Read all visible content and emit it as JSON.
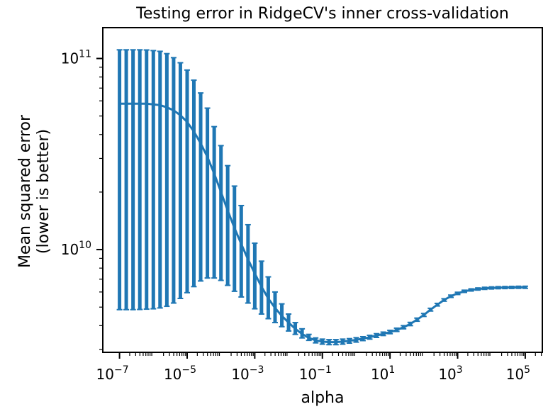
{
  "chart_data": {
    "type": "line",
    "title": "Testing error in RidgeCV's inner cross-validation",
    "xlabel": "alpha",
    "ylabel_lines": [
      "Mean squared error",
      "(lower is better)"
    ],
    "xscale": "log",
    "yscale": "log",
    "xlim": [
      3.2e-08,
      320000.0
    ],
    "ylim": [
      2900000000.0,
      145000000000.0
    ],
    "x_ticks": [
      {
        "value": 1e-07,
        "base": "10",
        "exp": "−7"
      },
      {
        "value": 1e-05,
        "base": "10",
        "exp": "−5"
      },
      {
        "value": 0.001,
        "base": "10",
        "exp": "−3"
      },
      {
        "value": 0.1,
        "base": "10",
        "exp": "−1"
      },
      {
        "value": 10.0,
        "base": "10",
        "exp": "1"
      },
      {
        "value": 1000.0,
        "base": "10",
        "exp": "3"
      },
      {
        "value": 100000.0,
        "base": "10",
        "exp": "5"
      }
    ],
    "y_ticks": [
      {
        "value": 10000000000.0,
        "base": "10",
        "exp": "10"
      },
      {
        "value": 100000000000.0,
        "base": "10",
        "exp": "11"
      }
    ],
    "grid": false,
    "legend": "none",
    "series": [
      {
        "style": "line with error bars",
        "color": "#1f77b4",
        "x": [
          1e-07,
          1.58e-07,
          2.51e-07,
          3.98e-07,
          6.31e-07,
          1e-06,
          1.58e-06,
          2.51e-06,
          3.98e-06,
          6.31e-06,
          1e-05,
          1.58e-05,
          2.51e-05,
          3.98e-05,
          6.31e-05,
          0.0001,
          0.000158,
          0.000251,
          0.000398,
          0.000631,
          0.001,
          0.00158,
          0.00251,
          0.00398,
          0.00631,
          0.01,
          0.0158,
          0.0251,
          0.0398,
          0.0631,
          0.1,
          0.158,
          0.251,
          0.398,
          0.631,
          1,
          1.58,
          2.51,
          3.98,
          6.31,
          10,
          15.8,
          25.1,
          39.8,
          63.1,
          100,
          158,
          251,
          398,
          631,
          1000,
          1580,
          2510,
          3980,
          6310,
          10000,
          15800,
          25100,
          39800,
          63100,
          100000
        ],
        "y": [
          58000000000.0,
          58000000000.0,
          58000000000.0,
          58000000000.0,
          58000000000.0,
          57500000000.0,
          57000000000.0,
          55500000000.0,
          53500000000.0,
          50500000000.0,
          46500000000.0,
          41500000000.0,
          36000000000.0,
          30500000000.0,
          25000000000.0,
          20000000000.0,
          16000000000.0,
          13000000000.0,
          10700000000.0,
          8900000000.0,
          7500000000.0,
          6400000000.0,
          5550000000.0,
          4950000000.0,
          4500000000.0,
          4150000000.0,
          3850000000.0,
          3620000000.0,
          3450000000.0,
          3350000000.0,
          3300000000.0,
          3280000000.0,
          3280000000.0,
          3300000000.0,
          3330000000.0,
          3370000000.0,
          3420000000.0,
          3480000000.0,
          3550000000.0,
          3620000000.0,
          3700000000.0,
          3800000000.0,
          3920000000.0,
          4080000000.0,
          4300000000.0,
          4550000000.0,
          4850000000.0,
          5150000000.0,
          5450000000.0,
          5700000000.0,
          5900000000.0,
          6050000000.0,
          6150000000.0,
          6220000000.0,
          6270000000.0,
          6300000000.0,
          6320000000.0,
          6330000000.0,
          6340000000.0,
          6350000000.0,
          6350000000.0
        ],
        "err_low": [
          4850000000.0,
          4850000000.0,
          4850000000.0,
          4860000000.0,
          4880000000.0,
          4900000000.0,
          4950000000.0,
          5050000000.0,
          5250000000.0,
          5550000000.0,
          5950000000.0,
          6400000000.0,
          6850000000.0,
          7100000000.0,
          7100000000.0,
          6900000000.0,
          6500000000.0,
          6050000000.0,
          5650000000.0,
          5250000000.0,
          4900000000.0,
          4600000000.0,
          4350000000.0,
          4150000000.0,
          3950000000.0,
          3750000000.0,
          3600000000.0,
          3450000000.0,
          3350000000.0,
          3250000000.0,
          3200000000.0,
          3180000000.0,
          3180000000.0,
          3200000000.0,
          3240000000.0,
          3280000000.0,
          3340000000.0,
          3400000000.0,
          3470000000.0,
          3550000000.0,
          3630000000.0,
          3730000000.0,
          3850000000.0,
          4000000000.0,
          4220000000.0,
          4470000000.0,
          4770000000.0,
          5070000000.0,
          5370000000.0,
          5620000000.0,
          5820000000.0,
          5970000000.0,
          6070000000.0,
          6140000000.0,
          6190000000.0,
          6220000000.0,
          6240000000.0,
          6250000000.0,
          6260000000.0,
          6270000000.0,
          6270000000.0
        ],
        "err_high": [
          111000000000.0,
          111000000000.0,
          111000000000.0,
          111000000000.0,
          110800000000.0,
          110000000000.0,
          109000000000.0,
          106000000000.0,
          101000000000.0,
          95000000000.0,
          87000000000.0,
          77000000000.0,
          66000000000.0,
          55000000000.0,
          44000000000.0,
          35000000000.0,
          27500000000.0,
          21500000000.0,
          17000000000.0,
          13500000000.0,
          10800000000.0,
          8700000000.0,
          7200000000.0,
          6000000000.0,
          5200000000.0,
          4600000000.0,
          4150000000.0,
          3850000000.0,
          3600000000.0,
          3450000000.0,
          3400000000.0,
          3380000000.0,
          3380000000.0,
          3400000000.0,
          3420000000.0,
          3460000000.0,
          3500000000.0,
          3560000000.0,
          3630000000.0,
          3700000000.0,
          3780000000.0,
          3880000000.0,
          4000000000.0,
          4160000000.0,
          4380000000.0,
          4630000000.0,
          4930000000.0,
          5230000000.0,
          5530000000.0,
          5780000000.0,
          5980000000.0,
          6130000000.0,
          6230000000.0,
          6300000000.0,
          6350000000.0,
          6380000000.0,
          6400000000.0,
          6410000000.0,
          6420000000.0,
          6430000000.0,
          6430000000.0
        ]
      }
    ]
  }
}
